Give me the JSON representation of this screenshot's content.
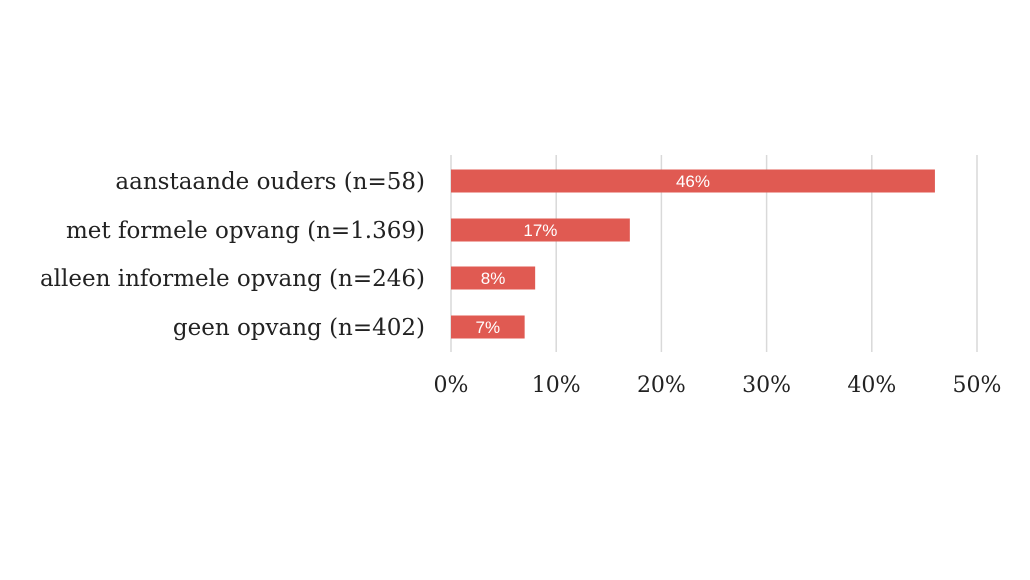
{
  "chart_data": {
    "type": "bar",
    "orientation": "horizontal",
    "title": "",
    "xlabel": "",
    "ylabel": "",
    "categories": [
      "aanstaande ouders (n=58)",
      "met formele opvang (n=1.369)",
      "alleen informele opvang (n=246)",
      "geen opvang (n=402)"
    ],
    "values": [
      46,
      17,
      8,
      7
    ],
    "data_labels": [
      "46%",
      "17%",
      "8%",
      "7%"
    ],
    "xlim": [
      0,
      50
    ],
    "xticks": [
      0,
      10,
      20,
      30,
      40,
      50
    ],
    "xtick_labels": [
      "0%",
      "10%",
      "20%",
      "30%",
      "40%",
      "50%"
    ],
    "grid": "vertical",
    "legend": "none",
    "colors": {
      "bar": "#E05A52",
      "label": "#ffffff",
      "text": "#222222",
      "grid": "#d9d9d9"
    }
  }
}
